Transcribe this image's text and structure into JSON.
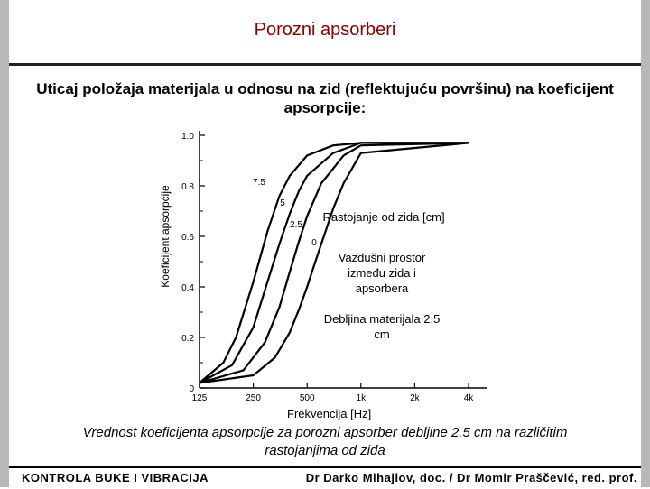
{
  "slide": {
    "title": "Porozni apsorberi",
    "subtitle": "Uticaj položaja materijala u odnosu na zid (reflektujuću površinu) na koeficijent apsorpcije:",
    "caption": "Vrednost koeficijenta apsorpcije za porozni apsorber debljine 2.5 cm na različitim rastojanjima od zida",
    "footer_left": "KONTROLA BUKE I VIBRACIJA",
    "footer_right": "Dr Darko Mihajlov, doc. / Dr Momir Praščević, red. prof."
  },
  "annotations": {
    "distance_title": "Rastojanje od zida [cm]",
    "air_gap": "Vazdušni prostor između zida i apsorbera",
    "thickness": "Debljina materijala 2.5 cm"
  },
  "chart_data": {
    "type": "line",
    "ylabel": "Koeficijent apsorpcije",
    "xlabel": "Frekvencija [Hz]",
    "x_scale": "log",
    "xlim": [
      125,
      4000
    ],
    "ylim": [
      0,
      1.0
    ],
    "x_ticks": [
      125,
      250,
      500,
      1000,
      2000,
      4000
    ],
    "x_tick_labels": [
      "125",
      "250",
      "500",
      "1k",
      "2k",
      "4k"
    ],
    "y_ticks": [
      0,
      0.2,
      0.4,
      0.6,
      0.8,
      1.0
    ],
    "y_tick_labels": [
      "0",
      "0.2",
      "0.4",
      "0.6",
      "0.8",
      "1.0"
    ],
    "grid": false,
    "line_color": "#000000",
    "series": [
      {
        "name": "7.5",
        "x": [
          125,
          170,
          200,
          250,
          300,
          350,
          400,
          500,
          700,
          1000,
          4000
        ],
        "y": [
          0.02,
          0.1,
          0.2,
          0.42,
          0.62,
          0.76,
          0.84,
          0.92,
          0.96,
          0.97,
          0.97
        ]
      },
      {
        "name": "5",
        "x": [
          125,
          190,
          250,
          300,
          350,
          400,
          450,
          500,
          700,
          1000,
          4000
        ],
        "y": [
          0.02,
          0.09,
          0.24,
          0.42,
          0.57,
          0.69,
          0.78,
          0.84,
          0.93,
          0.97,
          0.97
        ]
      },
      {
        "name": "2.5",
        "x": [
          125,
          220,
          290,
          350,
          400,
          450,
          500,
          600,
          800,
          1000,
          4000
        ],
        "y": [
          0.02,
          0.07,
          0.18,
          0.32,
          0.46,
          0.58,
          0.68,
          0.81,
          0.92,
          0.96,
          0.97
        ]
      },
      {
        "name": "0",
        "x": [
          125,
          250,
          330,
          400,
          450,
          500,
          550,
          600,
          700,
          800,
          1000,
          4000
        ],
        "y": [
          0.02,
          0.05,
          0.12,
          0.22,
          0.31,
          0.4,
          0.49,
          0.57,
          0.71,
          0.81,
          0.93,
          0.97
        ]
      }
    ]
  }
}
